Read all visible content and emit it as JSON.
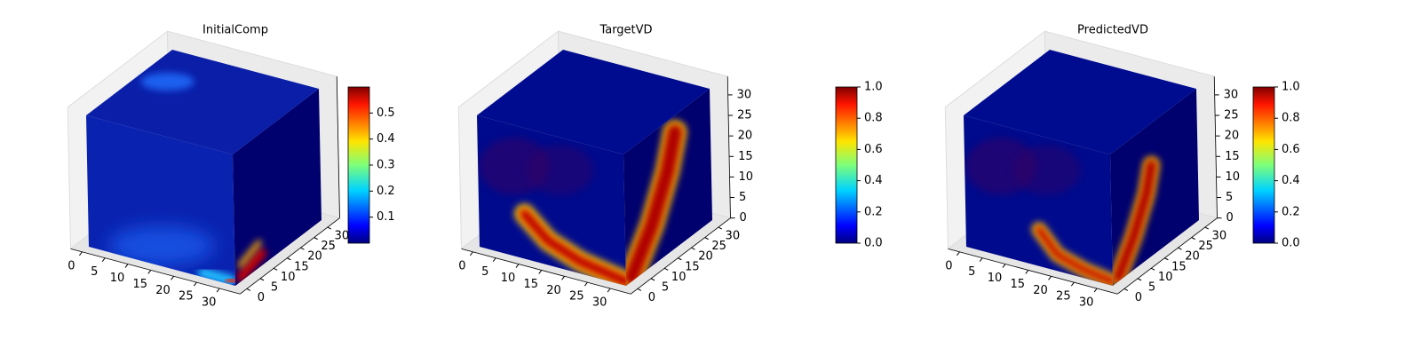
{
  "chart_data": [
    {
      "type": "voxel3d",
      "title": "InitialComp",
      "colormap": "jet",
      "xlim": [
        0,
        32
      ],
      "ylim": [
        0,
        32
      ],
      "zlim": [
        0,
        32
      ],
      "xticks": [
        0,
        5,
        10,
        15,
        20,
        25,
        30
      ],
      "yticks": [
        0,
        5,
        10,
        15,
        20,
        25,
        30
      ],
      "colorbar": {
        "lim": [
          0,
          0.6
        ],
        "ticks": [
          0.1,
          0.2,
          0.3,
          0.4,
          0.5
        ]
      }
    },
    {
      "type": "voxel3d",
      "title": "TargetVD",
      "colormap": "jet",
      "xlim": [
        0,
        32
      ],
      "ylim": [
        0,
        32
      ],
      "zlim": [
        0,
        32
      ],
      "xticks": [
        0,
        5,
        10,
        15,
        20,
        25,
        30
      ],
      "yticks": [
        0,
        5,
        10,
        15,
        20,
        25,
        30
      ],
      "zticks": [
        0,
        5,
        10,
        15,
        20,
        25,
        30
      ],
      "colorbar": {
        "lim": [
          0,
          1
        ],
        "ticks": [
          0.0,
          0.2,
          0.4,
          0.6,
          0.8,
          1.0
        ]
      }
    },
    {
      "type": "voxel3d",
      "title": "PredictedVD",
      "colormap": "jet",
      "xlim": [
        0,
        32
      ],
      "ylim": [
        0,
        32
      ],
      "zlim": [
        0,
        32
      ],
      "xticks": [
        0,
        5,
        10,
        15,
        20,
        25,
        30
      ],
      "yticks": [
        0,
        5,
        10,
        15,
        20,
        25,
        30
      ],
      "zticks": [
        0,
        5,
        10,
        15,
        20,
        25,
        30
      ],
      "colorbar": {
        "lim": [
          0,
          1
        ],
        "ticks": [
          0.0,
          0.2,
          0.4,
          0.6,
          0.8,
          1.0
        ]
      }
    }
  ]
}
